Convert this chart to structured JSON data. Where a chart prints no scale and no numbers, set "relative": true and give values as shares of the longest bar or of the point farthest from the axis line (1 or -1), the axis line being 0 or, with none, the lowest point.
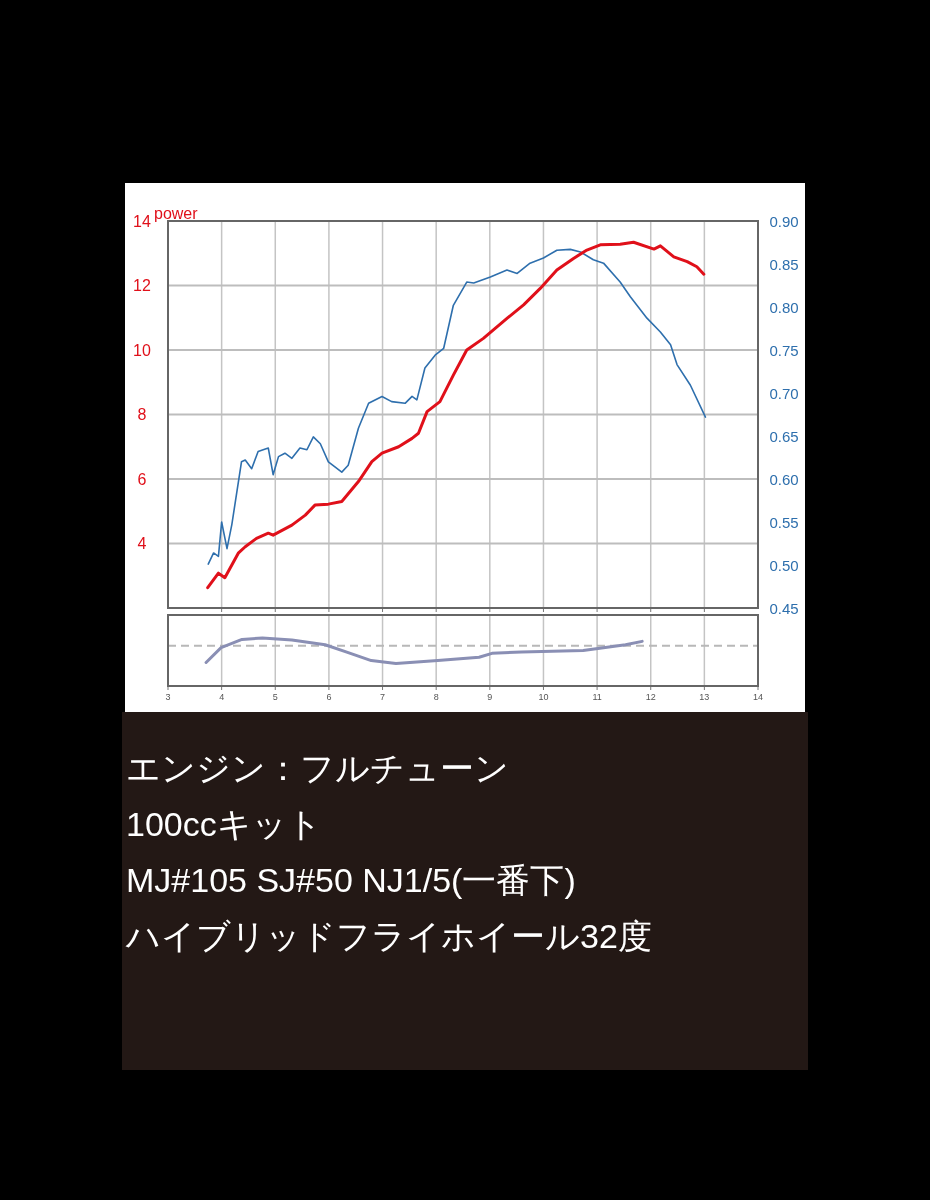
{
  "chart_data": [
    {
      "type": "line",
      "ylabel": "power",
      "xlim": [
        3,
        14
      ],
      "ylim": [
        2,
        14
      ],
      "y2lim": [
        0.45,
        0.9
      ],
      "grid": true,
      "tick_labels": "y",
      "xticks": [
        {
          "value": 4,
          "label": null
        },
        {
          "value": 5,
          "label": null
        },
        {
          "value": 6,
          "label": null
        },
        {
          "value": 7,
          "label": null
        },
        {
          "value": 8,
          "label": null
        },
        {
          "value": 9,
          "label": null
        },
        {
          "value": 10,
          "label": null
        },
        {
          "value": 11,
          "label": null
        },
        {
          "value": 12,
          "label": null
        },
        {
          "value": 13,
          "label": null
        }
      ],
      "yticks": [
        4,
        6,
        8,
        10,
        12,
        14
      ],
      "y2ticks": [
        0.45,
        {
          "value": 0.5,
          "label": "0.50"
        },
        0.55,
        {
          "value": 0.6,
          "label": "0.60"
        },
        0.65,
        {
          "value": 0.7,
          "label": "0.70"
        },
        0.75,
        {
          "value": 0.8,
          "label": "0.80"
        },
        0.85,
        {
          "value": 0.9,
          "label": "0.90"
        }
      ],
      "series": [
        {
          "color": "#2e6fad",
          "axis": "y2",
          "x": [
            3.75,
            3.85,
            3.94,
            4.0,
            4.1,
            4.19,
            4.37,
            4.44,
            4.56,
            4.68,
            4.87,
            4.96,
            5.06,
            5.18,
            5.31,
            5.46,
            5.59,
            5.71,
            5.84,
            5.99,
            6.24,
            6.36,
            6.55,
            6.74,
            6.99,
            7.17,
            7.42,
            7.55,
            7.64,
            7.79,
            7.98,
            8.14,
            8.32,
            8.57,
            8.7,
            9.01,
            9.32,
            9.51,
            9.75,
            10.0,
            10.25,
            10.5,
            10.69,
            10.93,
            11.12,
            11.43,
            11.62,
            11.93,
            12.18,
            12.37,
            12.49,
            12.74,
            13.02
          ],
          "values": [
            0.501,
            0.514,
            0.51,
            0.55,
            0.519,
            0.547,
            0.62,
            0.622,
            0.612,
            0.632,
            0.636,
            0.605,
            0.626,
            0.63,
            0.624,
            0.636,
            0.634,
            0.649,
            0.641,
            0.62,
            0.608,
            0.616,
            0.659,
            0.688,
            0.696,
            0.69,
            0.688,
            0.696,
            0.692,
            0.729,
            0.744,
            0.752,
            0.802,
            0.829,
            0.828,
            0.835,
            0.843,
            0.839,
            0.851,
            0.857,
            0.866,
            0.867,
            0.864,
            0.855,
            0.851,
            0.829,
            0.812,
            0.787,
            0.771,
            0.756,
            0.733,
            0.709,
            0.672
          ]
        },
        {
          "color": "#e0101a",
          "x": [
            3.74,
            3.94,
            4.06,
            4.31,
            4.44,
            4.65,
            4.87,
            4.96,
            5.31,
            5.56,
            5.74,
            5.99,
            6.24,
            6.55,
            6.8,
            6.99,
            7.3,
            7.55,
            7.67,
            7.83,
            8.07,
            8.32,
            8.57,
            8.88,
            9.32,
            9.63,
            9.94,
            10.25,
            10.56,
            10.81,
            11.06,
            11.43,
            11.68,
            12.06,
            12.18,
            12.43,
            12.68,
            12.86,
            12.99
          ],
          "values": [
            2.63,
            3.08,
            2.94,
            3.7,
            3.9,
            4.16,
            4.32,
            4.26,
            4.57,
            4.88,
            5.19,
            5.22,
            5.3,
            5.92,
            6.54,
            6.8,
            7.0,
            7.26,
            7.42,
            8.09,
            8.4,
            9.22,
            10.0,
            10.36,
            10.98,
            11.4,
            11.91,
            12.48,
            12.84,
            13.1,
            13.26,
            13.28,
            13.34,
            13.13,
            13.23,
            12.89,
            12.74,
            12.58,
            12.35
          ]
        }
      ]
    },
    {
      "type": "line",
      "relative": true,
      "xlim": [
        3,
        14
      ],
      "xticks": [
        3,
        4,
        5,
        6,
        7,
        8,
        9,
        10,
        11,
        12,
        13,
        14
      ],
      "grid": "x",
      "ref_lines": [
        {
          "axis": "y",
          "value": 0.84,
          "color": "#b8b8b8",
          "line_style": "dashed"
        }
      ],
      "series": [
        {
          "color": "#8a8fb4",
          "x": [
            3.71,
            3.99,
            4.38,
            4.76,
            5.31,
            5.93,
            6.32,
            6.79,
            7.25,
            8.03,
            8.8,
            9.04,
            9.59,
            10.74,
            11.53,
            11.84
          ],
          "values": [
            0.49,
            0.8,
            0.97,
            1.0,
            0.96,
            0.86,
            0.71,
            0.53,
            0.47,
            0.53,
            0.6,
            0.68,
            0.71,
            0.74,
            0.86,
            0.93
          ]
        }
      ]
    },
    {
      "type": "other",
      "annotations": [
        "エンジン：フルチューン",
        "100ccキット",
        "MJ#105 SJ#50 NJ1/5(一番下)",
        "ハイブリッドフライホイール32度"
      ]
    }
  ]
}
